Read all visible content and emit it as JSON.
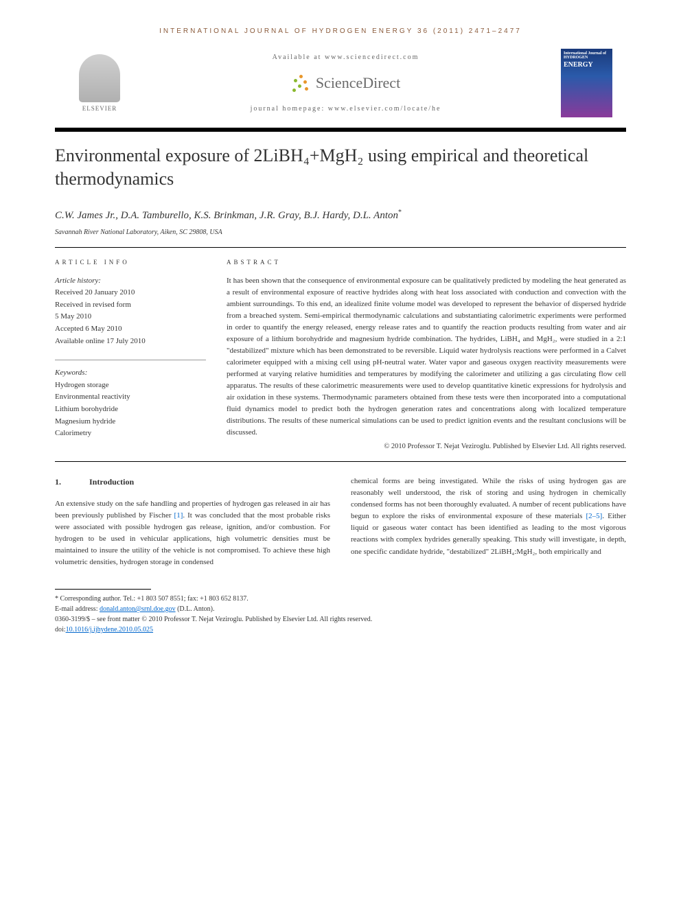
{
  "journal_header": "INTERNATIONAL JOURNAL OF HYDROGEN ENERGY 36 (2011) 2471–2477",
  "available": "Available at www.sciencedirect.com",
  "scidirect": "ScienceDirect",
  "homepage": "journal homepage: www.elsevier.com/locate/he",
  "elsevier": "ELSEVIER",
  "cover": {
    "line1": "International Journal of",
    "line2": "HYDROGEN",
    "line3": "ENERGY"
  },
  "title": "Environmental exposure of 2LiBH₄+MgH₂ using empirical and theoretical thermodynamics",
  "authors": "C.W. James Jr., D.A. Tamburello, K.S. Brinkman, J.R. Gray, B.J. Hardy, D.L. Anton",
  "author_marker": "*",
  "affiliation": "Savannah River National Laboratory, Aiken, SC 29808, USA",
  "info_label": "ARTICLE INFO",
  "abstract_label": "ABSTRACT",
  "history": {
    "label": "Article history:",
    "received": "Received 20 January 2010",
    "revised1": "Received in revised form",
    "revised2": "5 May 2010",
    "accepted": "Accepted 6 May 2010",
    "online": "Available online 17 July 2010"
  },
  "keywords": {
    "label": "Keywords:",
    "items": [
      "Hydrogen storage",
      "Environmental reactivity",
      "Lithium borohydride",
      "Magnesium hydride",
      "Calorimetry"
    ]
  },
  "abstract": "It has been shown that the consequence of environmental exposure can be qualitatively predicted by modeling the heat generated as a result of environmental exposure of reactive hydrides along with heat loss associated with conduction and convection with the ambient surroundings. To this end, an idealized finite volume model was developed to represent the behavior of dispersed hydride from a breached system. Semi-empirical thermodynamic calculations and substantiating calorimetric experiments were performed in order to quantify the energy released, energy release rates and to quantify the reaction products resulting from water and air exposure of a lithium borohydride and magnesium hydride combination. The hydrides, LiBH₄ and MgH₂, were studied in a 2:1 \"destabilized\" mixture which has been demonstrated to be reversible. Liquid water hydrolysis reactions were performed in a Calvet calorimeter equipped with a mixing cell using pH-neutral water. Water vapor and gaseous oxygen reactivity measurements were performed at varying relative humidities and temperatures by modifying the calorimeter and utilizing a gas circulating flow cell apparatus. The results of these calorimetric measurements were used to develop quantitative kinetic expressions for hydrolysis and air oxidation in these systems. Thermodynamic parameters obtained from these tests were then incorporated into a computational fluid dynamics model to predict both the hydrogen generation rates and concentrations along with localized temperature distributions. The results of these numerical simulations can be used to predict ignition events and the resultant conclusions will be discussed.",
  "copyright": "© 2010 Professor T. Nejat Veziroglu. Published by Elsevier Ltd. All rights reserved.",
  "section1": {
    "num": "1.",
    "title": "Introduction"
  },
  "body_left": "An extensive study on the safe handling and properties of hydrogen gas released in air has been previously published by Fischer [1]. It was concluded that the most probable risks were associated with possible hydrogen gas release, ignition, and/or combustion. For hydrogen to be used in vehicular applications, high volumetric densities must be maintained to insure the utility of the vehicle is not compromised. To achieve these high volumetric densities, hydrogen storage in condensed",
  "body_right": "chemical forms are being investigated. While the risks of using hydrogen gas are reasonably well understood, the risk of storing and using hydrogen in chemically condensed forms has not been thoroughly evaluated. A number of recent publications have begun to explore the risks of environmental exposure of these materials [2–5]. Either liquid or gaseous water contact has been identified as leading to the most vigorous reactions with complex hydrides generally speaking. This study will investigate, in depth, one specific candidate hydride, \"destabilized\" 2LiBH₄:MgH₂, both empirically and",
  "footnotes": {
    "corr": "* Corresponding author. Tel.: +1 803 507 8551; fax: +1 803 652 8137.",
    "email_label": "E-mail address: ",
    "email": "donald.anton@srnl.doe.gov",
    "email_suffix": " (D.L. Anton).",
    "issn": "0360-3199/$ – see front matter © 2010 Professor T. Nejat Veziroglu. Published by Elsevier Ltd. All rights reserved.",
    "doi_label": "doi:",
    "doi": "10.1016/j.ijhydene.2010.05.025"
  },
  "colors": {
    "dot_orange": "#e8972c",
    "dot_green": "#8ab82e",
    "link": "#0066cc"
  }
}
